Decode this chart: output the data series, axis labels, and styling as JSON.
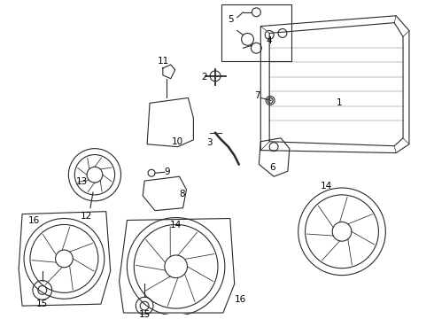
{
  "bg_color": "#ffffff",
  "line_color": "#2a2a2a",
  "label_color": "#000000",
  "fig_width": 4.9,
  "fig_height": 3.6
}
